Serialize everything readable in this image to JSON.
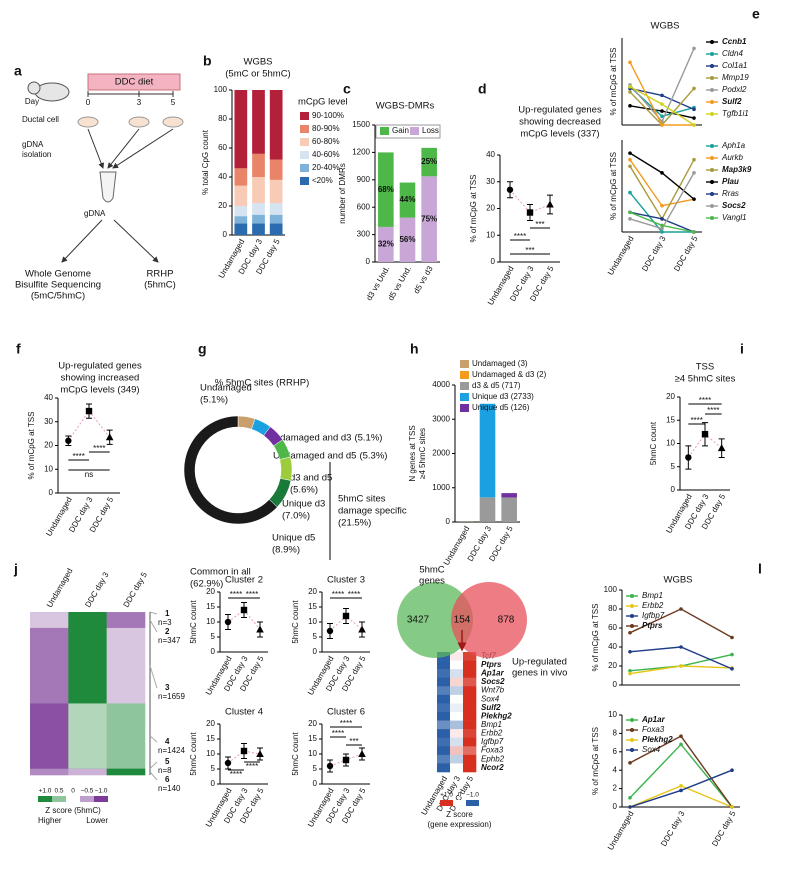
{
  "panel_a": {
    "label": "a",
    "diet": "DDC diet",
    "day": "Day",
    "days": [
      0,
      3,
      5
    ],
    "cell": "Ductal cell",
    "isolation": [
      "gDNA",
      "isolation"
    ],
    "gdna": "gDNA",
    "wgbs": [
      "Whole Genome",
      "Bisulfite Sequencing",
      "(5mC/5hmC)"
    ],
    "rrhp": [
      "RRHP",
      "(5hmC)"
    ]
  },
  "venn": {
    "title": [
      "5hmC",
      "genes"
    ],
    "values": [
      3427,
      154,
      878
    ],
    "subtitle": [
      "Up-regulated",
      "genes in vivo"
    ],
    "colors": [
      "#5cb85c",
      "#e8505b"
    ]
  },
  "chart_data": [
    {
      "type": "stacked_bar",
      "label": "b",
      "title": [
        "WGBS",
        "(5mC or 5hmC)"
      ],
      "ylabel": "% total CpG count",
      "categories": [
        "Undamaged",
        "DDC day 3",
        "DDC day 5"
      ],
      "ylim": [
        0,
        100
      ],
      "yticks": [
        0,
        20,
        40,
        60,
        80,
        100
      ],
      "legend_title": "mCpG level",
      "series": [
        {
          "name": "<20%",
          "color": "#2b6cb0",
          "values": [
            8,
            8,
            8
          ]
        },
        {
          "name": "20-40%",
          "color": "#7fb2d8",
          "values": [
            5,
            6,
            6
          ]
        },
        {
          "name": "40-60%",
          "color": "#d5e4f0",
          "values": [
            7,
            8,
            8
          ]
        },
        {
          "name": "60-80%",
          "color": "#f8cbb6",
          "values": [
            14,
            18,
            16
          ]
        },
        {
          "name": "80-90%",
          "color": "#e98468",
          "values": [
            12,
            16,
            14
          ]
        },
        {
          "name": "90-100%",
          "color": "#b3203a",
          "values": [
            54,
            44,
            48
          ]
        }
      ]
    },
    {
      "type": "stacked_bar",
      "label": "c",
      "title": "WGBS-DMRs",
      "ylabel": "number of DMRs",
      "categories": [
        "d3 vs Und.",
        "d5 vs Und.",
        "d5 vs d3"
      ],
      "ylim": [
        0,
        1500
      ],
      "yticks": [
        0,
        300,
        600,
        900,
        1200,
        1500
      ],
      "series": [
        {
          "name": "Loss",
          "color": "#c8a7d6",
          "values": [
            384,
            487,
            938
          ],
          "share_labels": [
            "32%",
            "56%",
            "75%"
          ]
        },
        {
          "name": "Gain",
          "color": "#4db848",
          "values": [
            816,
            383,
            312
          ],
          "share_labels": [
            "68%",
            "44%",
            "25%"
          ]
        }
      ]
    },
    {
      "type": "errorbar",
      "label": "d",
      "title": [
        "Up-regulated genes",
        "showing decreased",
        "mCpG levels (337)"
      ],
      "ylabel": "% of mCpG at TSS",
      "categories": [
        "Undamaged",
        "DDC day 3",
        "DDC day 5"
      ],
      "values": [
        27,
        18.5,
        21.5
      ],
      "errors": [
        3,
        3,
        3.5
      ],
      "ylim": [
        0,
        40
      ],
      "yticks": [
        0,
        10,
        20,
        30,
        40
      ],
      "line_color": "#e79ac2",
      "significance": [
        "****",
        "***",
        "***"
      ]
    },
    {
      "type": "line",
      "label": "e",
      "title": "WGBS",
      "ylabel": "% of mCpG at TSS",
      "ylim": [
        0,
        50
      ],
      "series": [
        {
          "name": "Ccnb1",
          "color": "#000000",
          "highlight": true,
          "values": [
            11,
            8,
            4
          ]
        },
        {
          "name": "Cldn4",
          "color": "#1aa19b",
          "values": [
            22,
            5,
            10
          ]
        },
        {
          "name": "Col1a1",
          "color": "#1f3c88",
          "values": [
            21,
            17,
            9
          ]
        },
        {
          "name": "Mmp19",
          "color": "#a89a3c",
          "values": [
            19,
            0,
            21
          ]
        },
        {
          "name": "Podxl2",
          "color": "#9a9a9a",
          "values": [
            23,
            2,
            44
          ]
        },
        {
          "name": "Sulf2",
          "color": "#f29b1d",
          "highlight": true,
          "values": [
            36,
            0,
            0
          ]
        },
        {
          "name": "Tgfb1i1",
          "color": "#d2d21e",
          "values": [
            22,
            12,
            0
          ]
        }
      ]
    },
    {
      "type": "line",
      "ylabel": "% of mCpG at TSS",
      "ylim": [
        0,
        14
      ],
      "categories": [
        "Undamaged",
        "DDC day 3",
        "DDC day 5"
      ],
      "series": [
        {
          "name": "Aph1a",
          "color": "#1aa19b",
          "values": [
            6,
            0,
            0
          ]
        },
        {
          "name": "Aurkb",
          "color": "#f29b1d",
          "values": [
            11,
            4,
            5
          ]
        },
        {
          "name": "Map3k9",
          "color": "#a89a3c",
          "highlight": true,
          "values": [
            10,
            2,
            11
          ]
        },
        {
          "name": "Plau",
          "color": "#000000",
          "highlight": true,
          "values": [
            12,
            9,
            5
          ]
        },
        {
          "name": "Rras",
          "color": "#1f3c88",
          "values": [
            3,
            2,
            0
          ]
        },
        {
          "name": "Socs2",
          "color": "#9a9a9a",
          "highlight": true,
          "values": [
            2,
            0.5,
            9
          ]
        },
        {
          "name": "Vangl1",
          "color": "#4db848",
          "values": [
            3,
            1,
            0
          ]
        }
      ]
    },
    {
      "type": "errorbar",
      "label": "f",
      "title": [
        "Up-regulated genes",
        "showing increased",
        "mCpG levels (349)"
      ],
      "ylabel": "% of mCpG at TSS",
      "categories": [
        "Undamaged",
        "DDC day 3",
        "DDC day 5"
      ],
      "values": [
        22,
        34.5,
        23.5
      ],
      "errors": [
        2,
        3,
        3
      ],
      "ylim": [
        0,
        40
      ],
      "yticks": [
        0,
        10,
        20,
        30,
        40
      ],
      "line_color": "#e79ac2",
      "significance": [
        "****",
        "****",
        "ns"
      ]
    },
    {
      "type": "donut",
      "label": "g",
      "title": "% 5hmC sites (RRHP)",
      "categories": [
        "Undamaged",
        "Undamaged and d3",
        "Undamaged and d5",
        "d3 and d5",
        "Unique d3",
        "Unique d5",
        "Common in all"
      ],
      "values": [
        5.1,
        5.1,
        5.3,
        5.6,
        7.0,
        8.9,
        62.9
      ],
      "value_labels": [
        "(5.1%)",
        "(5.1%)",
        "(5.3%)",
        "(5.6%)",
        "(7.0%)",
        "(8.9%)",
        "(62.9%)"
      ],
      "colors": [
        "#c9a06b",
        "#1ba1e2",
        "#7030a0",
        "#4db848",
        "#9ccb3b",
        "#1a7a3a",
        "#1a1a1a"
      ],
      "annotation": [
        "5hmC sites",
        "damage specific",
        "(21.5%)"
      ]
    },
    {
      "type": "stacked_bar",
      "label": "h",
      "ylabel": [
        "N genes at TSS",
        "≥4 5hmC sites"
      ],
      "categories": [
        "Undamaged",
        "DDC day 3",
        "DDC day 5"
      ],
      "category_colors": [
        "#c9a06b",
        "#1ba1e2",
        "#a97cc4"
      ],
      "ylim": [
        0,
        4000
      ],
      "yticks": [
        0,
        1000,
        2000,
        3000,
        4000
      ],
      "series": [
        {
          "name": "Undamaged (3)",
          "color": "#c9a06b",
          "values": [
            3,
            0,
            0
          ]
        },
        {
          "name": "Undamaged & d3 (2)",
          "color": "#f29b1d",
          "values": [
            2,
            2,
            0
          ]
        },
        {
          "name": "d3 & d5 (717)",
          "color": "#9a9a9a",
          "values": [
            0,
            717,
            717
          ]
        },
        {
          "name": "Unique d3 (2733)",
          "color": "#1ba1e2",
          "values": [
            0,
            2733,
            0
          ]
        },
        {
          "name": "Unique d5 (126)",
          "color": "#7030a0",
          "values": [
            0,
            0,
            126
          ]
        }
      ]
    },
    {
      "type": "errorbar",
      "label": "i",
      "title": [
        "TSS",
        "≥4 5hmC sites"
      ],
      "ylabel": "5hmC count",
      "categories": [
        "Undamaged",
        "DDC day 3",
        "DDC day 5"
      ],
      "values": [
        7,
        12,
        9
      ],
      "errors": [
        2.5,
        2.5,
        2
      ],
      "ylim": [
        0,
        20
      ],
      "yticks": [
        0,
        5,
        10,
        15,
        20
      ],
      "line_color": "#e79ac2",
      "significance": [
        "****",
        "****",
        "****"
      ]
    },
    {
      "type": "heatmap",
      "label": "j",
      "columns": [
        "Undamaged",
        "DDC day 3",
        "DDC day 5"
      ],
      "high_color": "#1f8a3b",
      "low_color": "#7d3c98",
      "rows": [
        {
          "cluster": "1",
          "size": 3,
          "size_label": "n=3",
          "z": [
            -0.5,
            1,
            -0.5
          ]
        },
        {
          "cluster": "2",
          "size": 347,
          "size_label": "n=347",
          "z": [
            -0.3,
            1,
            -0.7
          ]
        },
        {
          "cluster": "3",
          "size": 1659,
          "size_label": "n=1659",
          "z": [
            -0.7,
            1,
            -0.3
          ]
        },
        {
          "cluster": "4",
          "size": 1424,
          "size_label": "n=1424",
          "z": [
            -0.9,
            0.35,
            0.5
          ]
        },
        {
          "cluster": "5",
          "size": 8,
          "size_label": "n=8",
          "z": [
            -1,
            0.5,
            0.5
          ]
        },
        {
          "cluster": "6",
          "size": 140,
          "size_label": "n=140",
          "z": [
            -0.6,
            -0.4,
            1
          ]
        }
      ],
      "ticks": [
        {
          "value": 1,
          "label": "+1.0"
        },
        0.5,
        0,
        {
          "value": -0.5,
          "label": "−0.5"
        },
        {
          "value": -1,
          "label": "−1.0"
        }
      ],
      "cbar_title": [
        "Z score (5hmC)"
      ],
      "cbar_ends": [
        "Higher",
        "Lower"
      ]
    },
    {
      "type": "errorbar",
      "title": "Cluster 2",
      "ylabel": "5hmC count",
      "categories": [
        "Undamaged",
        "DDC day 3",
        "DDC day 5"
      ],
      "values": [
        10,
        14,
        7.5
      ],
      "errors": [
        2.5,
        2.5,
        2.5
      ],
      "ylim": [
        0,
        20
      ],
      "yticks": [
        0,
        5,
        10,
        15,
        20
      ],
      "line_color": "#e79ac2",
      "significance": [
        "****",
        "****"
      ]
    },
    {
      "type": "errorbar",
      "title": "Cluster 3",
      "ylabel": "5hmC count",
      "categories": [
        "Undamaged",
        "DDC day 3",
        "DDC day 5"
      ],
      "values": [
        7,
        12,
        7.5
      ],
      "errors": [
        2.5,
        2.5,
        2.5
      ],
      "ylim": [
        0,
        20
      ],
      "yticks": [
        0,
        5,
        10,
        15,
        20
      ],
      "line_color": "#e79ac2",
      "significance": [
        "****",
        "****"
      ]
    },
    {
      "type": "errorbar",
      "title": "Cluster 4",
      "ylabel": "5hmC count",
      "categories": [
        "Undamaged",
        "DDC day 3",
        "DDC day 5"
      ],
      "values": [
        7,
        11,
        10
      ],
      "errors": [
        2,
        2.5,
        2
      ],
      "ylim": [
        0,
        20
      ],
      "yticks": [
        0,
        5,
        10,
        15,
        20
      ],
      "line_color": "#e79ac2",
      "significance": [
        "****",
        "****"
      ]
    },
    {
      "type": "errorbar",
      "title": "Cluster 6",
      "ylabel": "5hmC count",
      "categories": [
        "Undamaged",
        "DDC day 3",
        "DDC day 5"
      ],
      "values": [
        6,
        8,
        10
      ],
      "errors": [
        2,
        2,
        2
      ],
      "ylim": [
        0,
        20
      ],
      "yticks": [
        0,
        5,
        10,
        15,
        20
      ],
      "line_color": "#e79ac2",
      "significance": [
        "****",
        "****",
        "***"
      ]
    },
    {
      "type": "heatmap",
      "label": "k",
      "columns": [
        "Undamaged",
        "DDC day 3",
        "DDC day 5"
      ],
      "high_color": "#d7301f",
      "low_color": "#2b5fa8",
      "rows": [
        {
          "name": "Tcf7",
          "z": [
            -1,
            0.1,
            0.9
          ]
        },
        {
          "name": "Ptprs",
          "highlight": true,
          "z": [
            -1,
            0,
            1
          ]
        },
        {
          "name": "Ap1ar",
          "highlight": true,
          "z": [
            -0.9,
            -0.2,
            1
          ]
        },
        {
          "name": "Socs2",
          "highlight": true,
          "z": [
            -1,
            0.2,
            0.8
          ]
        },
        {
          "name": "Wnt7b",
          "z": [
            -0.8,
            -0.3,
            1
          ]
        },
        {
          "name": "Sox4",
          "z": [
            -1,
            0,
            1
          ]
        },
        {
          "name": "Sulf2",
          "highlight": true,
          "z": [
            -0.9,
            -0.1,
            1
          ]
        },
        {
          "name": "Plekhg2",
          "highlight": true,
          "z": [
            -1,
            0,
            1
          ]
        },
        {
          "name": "Bmp1",
          "z": [
            -0.7,
            -0.4,
            1
          ]
        },
        {
          "name": "Erbb2",
          "z": [
            -1,
            0.1,
            0.9
          ]
        },
        {
          "name": "Igfbp7",
          "z": [
            -0.9,
            -0.2,
            1
          ]
        },
        {
          "name": "Foxa3",
          "z": [
            -1,
            0.3,
            0.7
          ]
        },
        {
          "name": "Ephb2",
          "z": [
            -0.8,
            -0.3,
            1
          ]
        },
        {
          "name": "Ncor2",
          "highlight": true,
          "z": [
            -1,
            0,
            1
          ]
        }
      ],
      "ticks": [
        {
          "value": 1,
          "label": "+1.0"
        },
        0,
        {
          "value": -1,
          "label": "−1.0"
        }
      ],
      "cbar_title": [
        "Z score",
        "(gene expression)"
      ]
    },
    {
      "type": "line",
      "label": "l",
      "title": "WGBS",
      "ylabel": "% of mCpG at TSS",
      "ylim": [
        0,
        100
      ],
      "yticks": [
        0,
        20,
        40,
        60,
        80,
        100
      ],
      "series": [
        {
          "name": "Bmp1",
          "color": "#3cb44b",
          "values": [
            15,
            20,
            32
          ]
        },
        {
          "name": "Erbb2",
          "color": "#e6c619",
          "values": [
            12,
            20,
            18
          ]
        },
        {
          "name": "Igfbp7",
          "color": "#1f3c88",
          "values": [
            35,
            40,
            17
          ]
        },
        {
          "name": "Ptprs",
          "color": "#6b3a1f",
          "highlight": true,
          "values": [
            55,
            80,
            50
          ]
        }
      ]
    },
    {
      "type": "line",
      "ylabel": "% of mCpG at TSS",
      "ylim": [
        0,
        10
      ],
      "yticks": [
        0,
        2,
        4,
        6,
        8,
        10
      ],
      "categories": [
        "Undamaged",
        "DDC day 3",
        "DDC day 5"
      ],
      "series": [
        {
          "name": "Ap1ar",
          "color": "#3cb44b",
          "highlight": true,
          "values": [
            1,
            6.8,
            0
          ]
        },
        {
          "name": "Foxa3",
          "color": "#6b3a1f",
          "values": [
            4.8,
            7.7,
            0
          ]
        },
        {
          "name": "Plekhg2",
          "color": "#e6c619",
          "highlight": true,
          "values": [
            0,
            2.3,
            0
          ]
        },
        {
          "name": "Sox4",
          "color": "#1f3c88",
          "values": [
            0,
            1.8,
            4
          ]
        }
      ]
    }
  ]
}
